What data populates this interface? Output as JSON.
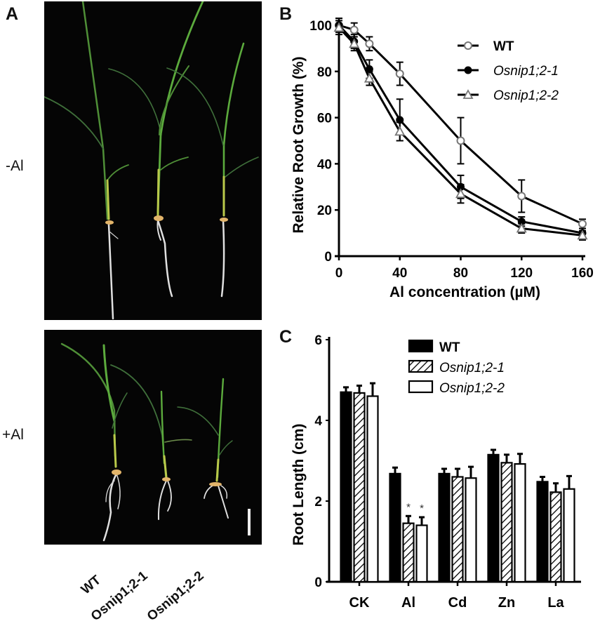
{
  "figure": {
    "panels": {
      "A": {
        "letter": "A",
        "row_labels": [
          "-Al",
          "+Al"
        ],
        "genotype_labels": [
          "WT",
          "Osnip1;2-1",
          "Osnip1;2-2"
        ],
        "background": "#050505",
        "leaf_color": "#5fa83a",
        "root_color": "#e6e6e6"
      },
      "B": {
        "letter": "B"
      },
      "C": {
        "letter": "C"
      }
    }
  },
  "chart_data": [
    {
      "panel": "B",
      "type": "line",
      "title": "",
      "xlabel": "Al concentration (µM)",
      "ylabel": "Relative Root Growth (%)",
      "x": [
        0,
        10,
        20,
        40,
        80,
        120,
        160
      ],
      "xticks": [
        0,
        40,
        80,
        120,
        160
      ],
      "yticks": [
        0,
        20,
        40,
        60,
        80,
        100
      ],
      "xlim": [
        0,
        160
      ],
      "ylim": [
        0,
        100
      ],
      "grid": false,
      "legend_position": "upper right",
      "series": [
        {
          "name": "WT",
          "marker": "open-circle",
          "italic": false,
          "values": [
            100,
            98,
            92,
            79,
            50,
            26,
            14
          ],
          "errors": [
            3,
            3,
            3,
            5,
            10,
            7,
            2
          ]
        },
        {
          "name": "Osnip1;2-1",
          "marker": "filled-circle",
          "italic": true,
          "values": [
            100,
            93,
            81,
            59,
            30,
            15,
            10
          ],
          "errors": [
            3,
            3,
            4,
            9,
            5,
            2,
            2
          ]
        },
        {
          "name": "Osnip1;2-2",
          "marker": "open-triangle",
          "italic": true,
          "values": [
            99,
            92,
            77,
            54,
            27,
            12,
            9
          ],
          "errors": [
            3,
            3,
            3,
            4,
            4,
            2,
            2
          ]
        }
      ]
    },
    {
      "panel": "C",
      "type": "bar",
      "title": "",
      "xlabel": "",
      "ylabel": "Root Length (cm)",
      "categories": [
        "CK",
        "Al",
        "Cd",
        "Zn",
        "La"
      ],
      "yticks": [
        0,
        2,
        4,
        6
      ],
      "ylim": [
        0,
        6
      ],
      "grid": false,
      "legend_position": "upper right",
      "series": [
        {
          "name": "WT",
          "fill": "solid-black",
          "italic": false,
          "values": [
            4.7,
            2.68,
            2.68,
            3.15,
            2.48
          ],
          "errors": [
            0.12,
            0.15,
            0.12,
            0.12,
            0.12
          ]
        },
        {
          "name": "Osnip1;2-1",
          "fill": "hatched",
          "italic": true,
          "values": [
            4.68,
            1.45,
            2.6,
            2.95,
            2.22
          ],
          "errors": [
            0.18,
            0.18,
            0.2,
            0.2,
            0.22
          ]
        },
        {
          "name": "Osnip1;2-2",
          "fill": "white",
          "italic": true,
          "values": [
            4.6,
            1.4,
            2.57,
            2.92,
            2.3
          ],
          "errors": [
            0.32,
            0.2,
            0.28,
            0.25,
            0.32
          ]
        }
      ],
      "annotations": [
        {
          "category": "Al",
          "series": "Osnip1;2-1",
          "text": "*"
        },
        {
          "category": "Al",
          "series": "Osnip1;2-2",
          "text": "*"
        }
      ]
    }
  ]
}
